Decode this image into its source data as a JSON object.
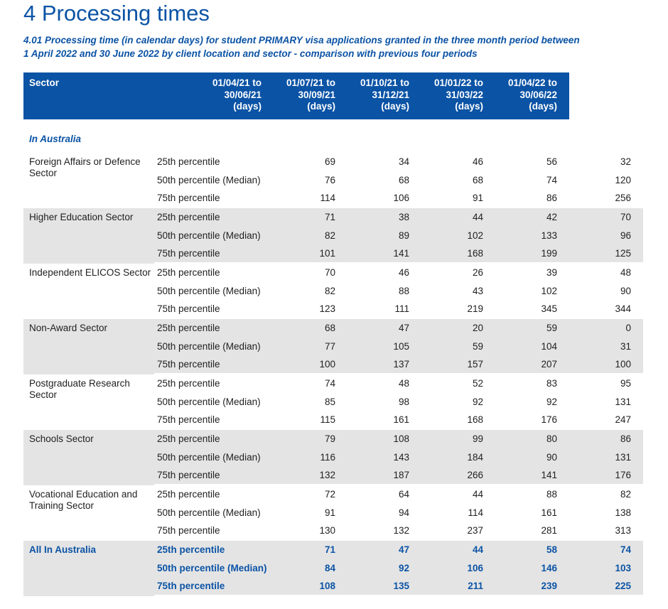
{
  "page": {
    "title": "4 Processing times",
    "subtitle_line1": "4.01 Processing time (in calendar days) for student PRIMARY visa applications granted in the three month period between",
    "subtitle_line2": "1 April 2022 and 30 June 2022 by client location and sector - comparison with previous four periods"
  },
  "colors": {
    "accent_blue": "#0b53a5",
    "header_bg": "#0b53a5",
    "header_text": "#ffffff",
    "shaded_row_bg": "#e4e4e4",
    "body_text": "#212121"
  },
  "table": {
    "sector_header": "Sector",
    "column_headers": [
      [
        "01/04/21 to",
        "30/06/21",
        "(days)"
      ],
      [
        "01/07/21 to",
        "30/09/21",
        "(days)"
      ],
      [
        "01/10/21 to",
        "31/12/21",
        "(days)"
      ],
      [
        "01/01/22 to",
        "31/03/22",
        "(days)"
      ],
      [
        "01/04/22 to",
        "30/06/22",
        "(days)"
      ]
    ],
    "section_label": "In Australia",
    "row_labels": [
      "25th percentile",
      "50th percentile (Median)",
      "75th percentile"
    ],
    "sections": [
      {
        "sector": "Foreign Affairs or Defence Sector",
        "shaded": false,
        "highlight": false,
        "rows": [
          [
            69,
            34,
            46,
            56,
            32
          ],
          [
            76,
            68,
            68,
            74,
            120
          ],
          [
            114,
            106,
            91,
            86,
            256
          ]
        ]
      },
      {
        "sector": "Higher Education Sector",
        "shaded": true,
        "highlight": false,
        "rows": [
          [
            71,
            38,
            44,
            42,
            70
          ],
          [
            82,
            89,
            102,
            133,
            96
          ],
          [
            101,
            141,
            168,
            199,
            125
          ]
        ]
      },
      {
        "sector": "Independent ELICOS Sector",
        "shaded": false,
        "highlight": false,
        "rows": [
          [
            70,
            46,
            26,
            39,
            48
          ],
          [
            82,
            88,
            43,
            102,
            90
          ],
          [
            123,
            111,
            219,
            345,
            344
          ]
        ]
      },
      {
        "sector": "Non-Award Sector",
        "shaded": true,
        "highlight": false,
        "rows": [
          [
            68,
            47,
            20,
            59,
            0
          ],
          [
            77,
            105,
            59,
            104,
            31
          ],
          [
            100,
            137,
            157,
            207,
            100
          ]
        ]
      },
      {
        "sector": "Postgraduate Research Sector",
        "shaded": false,
        "highlight": false,
        "rows": [
          [
            74,
            48,
            52,
            83,
            95
          ],
          [
            85,
            98,
            92,
            92,
            131
          ],
          [
            115,
            161,
            168,
            176,
            247
          ]
        ]
      },
      {
        "sector": "Schools Sector",
        "shaded": true,
        "highlight": false,
        "rows": [
          [
            79,
            108,
            99,
            80,
            86
          ],
          [
            116,
            143,
            184,
            90,
            131
          ],
          [
            132,
            187,
            266,
            141,
            176
          ]
        ]
      },
      {
        "sector": "Vocational Education and Training Sector",
        "shaded": false,
        "highlight": false,
        "rows": [
          [
            72,
            64,
            44,
            88,
            82
          ],
          [
            91,
            94,
            114,
            161,
            138
          ],
          [
            130,
            132,
            237,
            281,
            313
          ]
        ]
      },
      {
        "sector": "All In Australia",
        "shaded": true,
        "highlight": true,
        "rows": [
          [
            71,
            47,
            44,
            58,
            74
          ],
          [
            84,
            92,
            106,
            146,
            103
          ],
          [
            108,
            135,
            211,
            239,
            225
          ]
        ]
      }
    ]
  }
}
